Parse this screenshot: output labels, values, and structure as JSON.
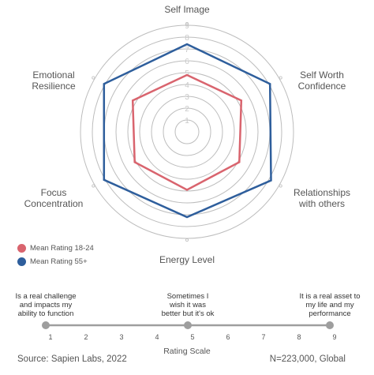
{
  "chart_data": {
    "type": "radar",
    "axes": [
      "Self Image",
      "Self Worth\nConfidence",
      "Relationships\nwith others",
      "Energy Level",
      "Focus\nConcentration",
      "Emotional\nResilience"
    ],
    "rlim": [
      0,
      9
    ],
    "ticks": [
      1,
      2,
      3,
      4,
      5,
      6,
      7,
      8,
      9
    ],
    "series": [
      {
        "name": "Mean Rating 18-24",
        "color": "#d9646e",
        "values": [
          4.8,
          5.3,
          5.1,
          4.9,
          5.1,
          5.3
        ]
      },
      {
        "name": "Mean Rating 55+",
        "color": "#2e5e9c",
        "values": [
          7.4,
          8.1,
          8.2,
          7.2,
          8.1,
          8.1
        ]
      }
    ],
    "scale": {
      "title": "Rating Scale",
      "ticks": [
        1,
        2,
        3,
        4,
        5,
        6,
        7,
        8,
        9
      ],
      "anchors": [
        {
          "value": 1,
          "text": "Is a real challenge\nand impacts my\nability to function"
        },
        {
          "value": 5,
          "text": "Sometimes I\nwish it was\nbetter but it's ok"
        },
        {
          "value": 9,
          "text": "It is a real asset to\nmy life and my\nperformance"
        }
      ]
    }
  },
  "footer": {
    "source": "Source: Sapien Labs, 2022",
    "sample": "N=223,000, Global"
  }
}
